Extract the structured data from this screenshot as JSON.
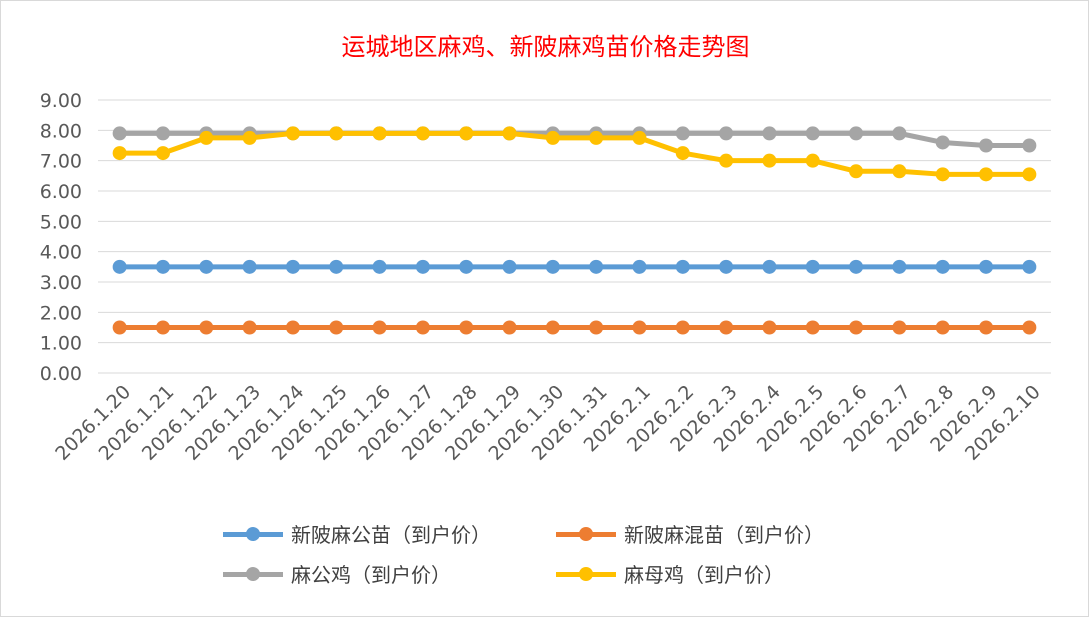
{
  "chart_data": {
    "type": "line",
    "title": "运城地区麻鸡、新陂麻鸡苗价格走势图",
    "xlabel": "",
    "ylabel": "",
    "ylim": [
      0,
      9
    ],
    "yticks": [
      "0.00",
      "1.00",
      "2.00",
      "3.00",
      "4.00",
      "5.00",
      "6.00",
      "7.00",
      "8.00",
      "9.00"
    ],
    "grid": true,
    "legend_position": "bottom",
    "categories": [
      "2026.1.20",
      "2026.1.21",
      "2026.1.22",
      "2026.1.23",
      "2026.1.24",
      "2026.1.25",
      "2026.1.26",
      "2026.1.27",
      "2026.1.28",
      "2026.1.29",
      "2026.1.30",
      "2026.1.31",
      "2026.2.1",
      "2026.2.2",
      "2026.2.3",
      "2026.2.4",
      "2026.2.5",
      "2026.2.6",
      "2026.2.7",
      "2026.2.8",
      "2026.2.9",
      "2026.2.10"
    ],
    "series": [
      {
        "name": "新陂麻公苗（到户价）",
        "color": "#5b9bd5",
        "values": [
          3.5,
          3.5,
          3.5,
          3.5,
          3.5,
          3.5,
          3.5,
          3.5,
          3.5,
          3.5,
          3.5,
          3.5,
          3.5,
          3.5,
          3.5,
          3.5,
          3.5,
          3.5,
          3.5,
          3.5,
          3.5,
          3.5
        ]
      },
      {
        "name": "新陂麻混苗（到户价）",
        "color": "#ed7d31",
        "values": [
          1.5,
          1.5,
          1.5,
          1.5,
          1.5,
          1.5,
          1.5,
          1.5,
          1.5,
          1.5,
          1.5,
          1.5,
          1.5,
          1.5,
          1.5,
          1.5,
          1.5,
          1.5,
          1.5,
          1.5,
          1.5,
          1.5
        ]
      },
      {
        "name": "麻公鸡（到户价）",
        "color": "#a5a5a5",
        "values": [
          7.9,
          7.9,
          7.9,
          7.9,
          7.9,
          7.9,
          7.9,
          7.9,
          7.9,
          7.9,
          7.9,
          7.9,
          7.9,
          7.9,
          7.9,
          7.9,
          7.9,
          7.9,
          7.9,
          7.6,
          7.5,
          7.5
        ]
      },
      {
        "name": "麻母鸡（到户价）",
        "color": "#ffc000",
        "values": [
          7.25,
          7.25,
          7.75,
          7.75,
          7.9,
          7.9,
          7.9,
          7.9,
          7.9,
          7.9,
          7.75,
          7.75,
          7.75,
          7.25,
          7.0,
          7.0,
          7.0,
          6.65,
          6.65,
          6.55,
          6.55,
          6.55
        ]
      }
    ]
  }
}
